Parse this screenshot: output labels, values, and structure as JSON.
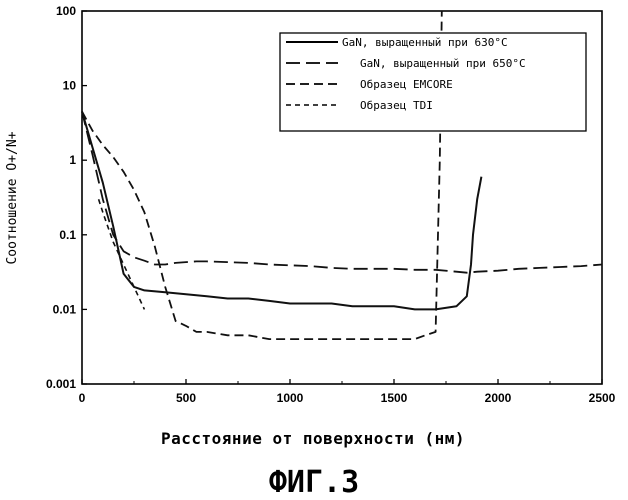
{
  "chart_data": {
    "type": "line",
    "xlabel": "Расстояние от поверхности (нм)",
    "ylabel": "Соотношение O+/N+",
    "xlim": [
      0,
      2500
    ],
    "ylim": [
      0.001,
      100
    ],
    "yscale": "log",
    "x_ticks": [
      "0",
      "500",
      "1000",
      "1500",
      "2000",
      "2500"
    ],
    "y_ticks": [
      "0.001",
      "0.01",
      "0.1",
      "1",
      "10",
      "100"
    ],
    "legend_position": "top-right",
    "grid": false,
    "series": [
      {
        "name": "GaN, выращенный при 630°C",
        "style": "solid",
        "x": [
          0,
          50,
          100,
          150,
          200,
          250,
          300,
          400,
          500,
          600,
          700,
          800,
          900,
          1000,
          1100,
          1200,
          1300,
          1400,
          1500,
          1600,
          1700,
          1800,
          1850,
          1870,
          1880,
          1900,
          1920
        ],
        "y": [
          4.5,
          1.5,
          0.5,
          0.13,
          0.03,
          0.02,
          0.018,
          0.017,
          0.016,
          0.015,
          0.014,
          0.014,
          0.013,
          0.012,
          0.012,
          0.012,
          0.011,
          0.011,
          0.011,
          0.01,
          0.01,
          0.011,
          0.015,
          0.04,
          0.1,
          0.3,
          0.6
        ]
      },
      {
        "name": "GaN, выращенный при 650°C",
        "style": "long-dash",
        "x": [
          0,
          50,
          100,
          150,
          200,
          250,
          300,
          350,
          400,
          450,
          500,
          550,
          600,
          700,
          800,
          900,
          1000,
          1100,
          1200,
          1300,
          1400,
          1500,
          1600,
          1700,
          1800,
          1850,
          1900,
          2000,
          2100,
          2200,
          2300,
          2400,
          2500
        ],
        "y": [
          4.5,
          1.2,
          0.3,
          0.1,
          0.06,
          0.05,
          0.045,
          0.04,
          0.04,
          0.042,
          0.043,
          0.044,
          0.044,
          0.043,
          0.042,
          0.04,
          0.039,
          0.038,
          0.036,
          0.035,
          0.035,
          0.035,
          0.034,
          0.034,
          0.032,
          0.031,
          0.032,
          0.033,
          0.035,
          0.036,
          0.037,
          0.038,
          0.04
        ]
      },
      {
        "name": "Образец EMCORE",
        "style": "dash",
        "x": [
          0,
          50,
          100,
          150,
          200,
          250,
          300,
          350,
          400,
          450,
          500,
          550,
          600,
          700,
          800,
          900,
          1000,
          1100,
          1200,
          1300,
          1400,
          1500,
          1600,
          1650,
          1700,
          1720,
          1730
        ],
        "y": [
          4.5,
          2.5,
          1.6,
          1.1,
          0.7,
          0.4,
          0.2,
          0.07,
          0.02,
          0.007,
          0.006,
          0.005,
          0.005,
          0.0045,
          0.0045,
          0.004,
          0.004,
          0.004,
          0.004,
          0.004,
          0.004,
          0.004,
          0.004,
          0.0045,
          0.005,
          1,
          100
        ]
      },
      {
        "name": "Образец TDI",
        "style": "short-dash",
        "x": [
          80,
          100,
          150,
          200,
          250,
          300
        ],
        "y": [
          0.3,
          0.2,
          0.08,
          0.04,
          0.02,
          0.01
        ]
      }
    ]
  },
  "figure_caption": "ФИГ.3"
}
